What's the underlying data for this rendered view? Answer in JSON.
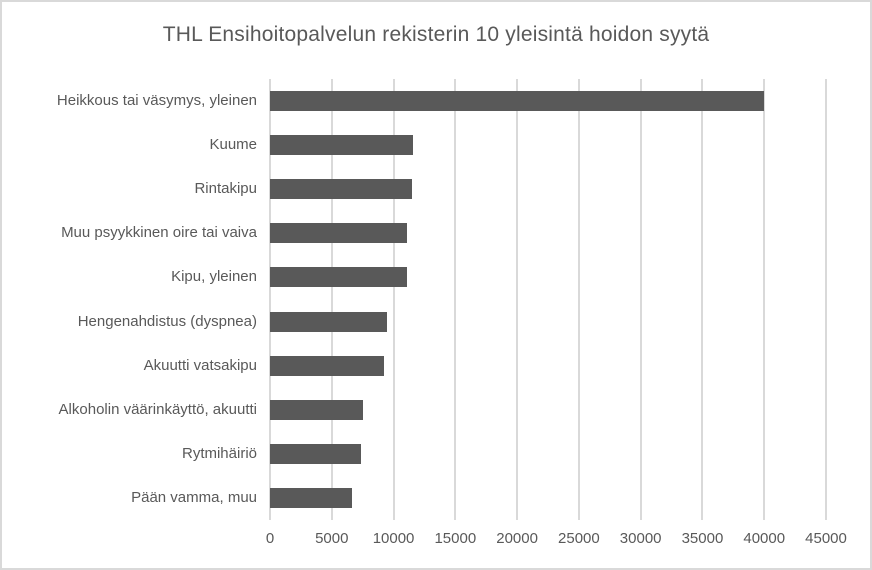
{
  "chart_data": {
    "type": "bar",
    "orientation": "horizontal",
    "title": "THL Ensihoitopalvelun rekisterin 10 yleisintä hoidon syytä",
    "categories": [
      "Heikkous tai väsymys, yleinen",
      "Kuume",
      "Rintakipu",
      "Muu psyykkinen oire tai vaiva",
      "Kipu, yleinen",
      "Hengenahdistus (dyspnea)",
      "Akuutti vatsakipu",
      "Alkoholin väärinkäyttö, akuutti",
      "Rytmihäiriö",
      "Pään vamma, muu"
    ],
    "values": [
      40000,
      11600,
      11500,
      11100,
      11100,
      9500,
      9200,
      7500,
      7400,
      6600
    ],
    "xlabel": "",
    "ylabel": "",
    "xlim": [
      0,
      45000
    ],
    "xticks": [
      0,
      5000,
      10000,
      15000,
      20000,
      25000,
      30000,
      35000,
      40000,
      45000
    ],
    "grid": true,
    "legend": false,
    "colors": {
      "bar": "#595959",
      "gridline": "#d9d9d9",
      "text": "#595959",
      "border": "#d9d9d9",
      "background": "#ffffff"
    }
  }
}
